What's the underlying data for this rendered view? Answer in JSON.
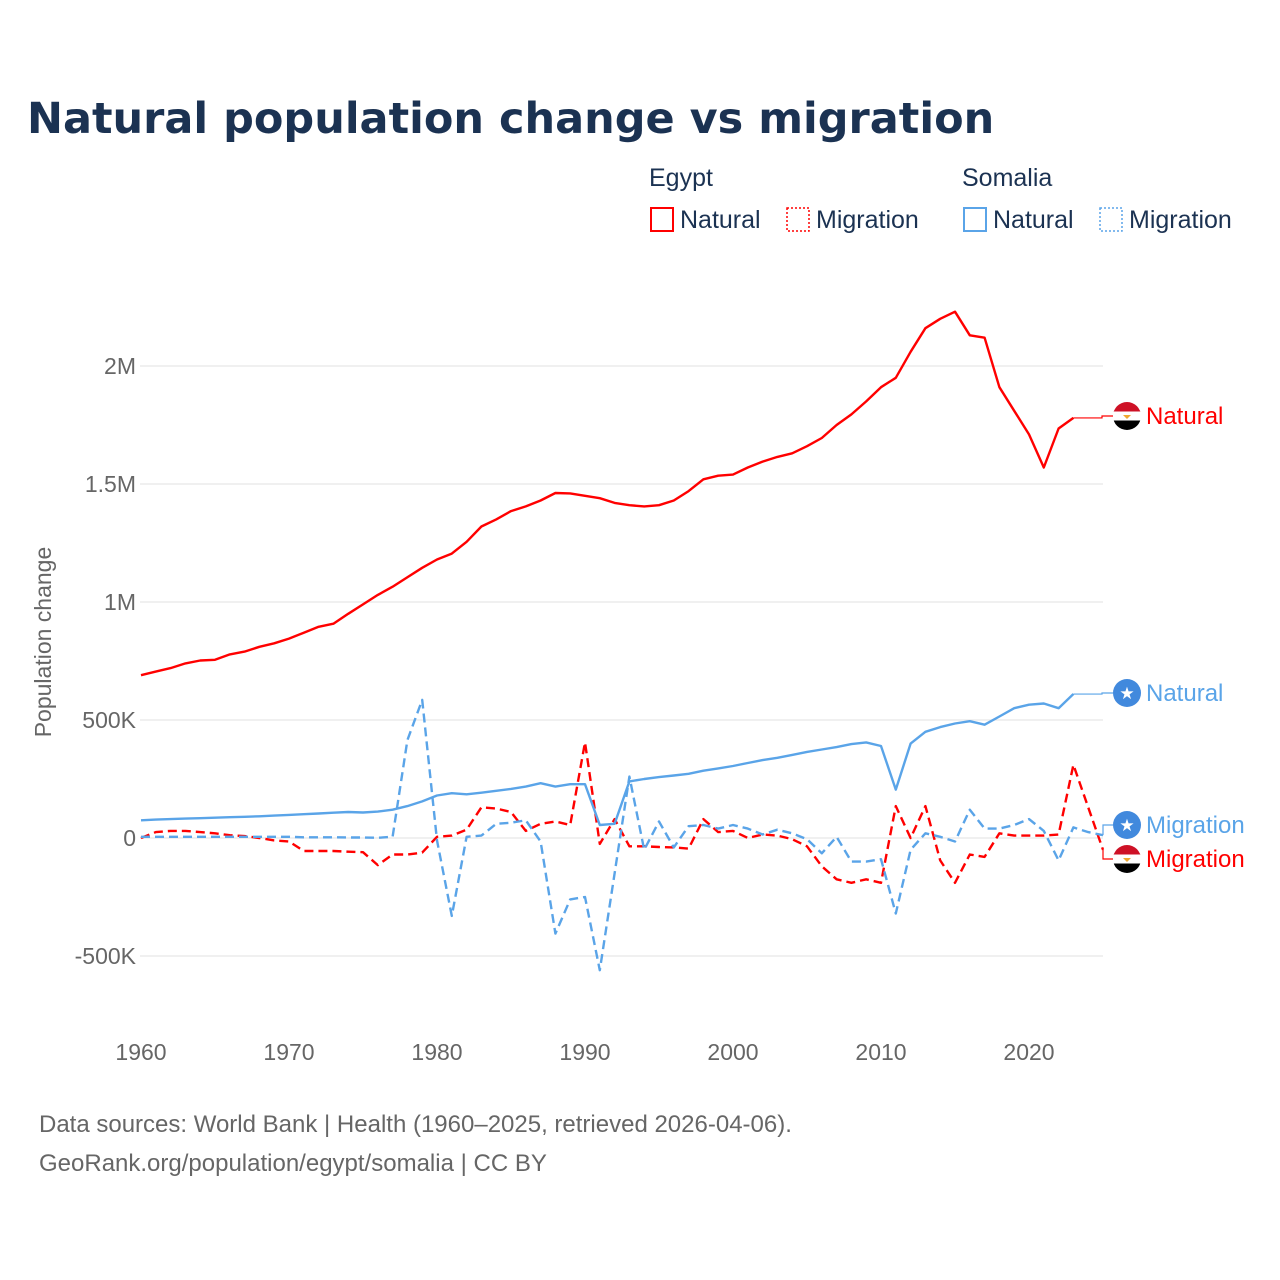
{
  "chart_data": {
    "type": "line",
    "title": "Natural population change vs migration",
    "ylabel": "Population change",
    "xlabel": "",
    "ylim": [
      -600000,
      2300000
    ],
    "xlim": [
      1960,
      2025
    ],
    "grid": true,
    "y_ticks": [
      {
        "value": -500000,
        "label": "-500K"
      },
      {
        "value": 0,
        "label": "0"
      },
      {
        "value": 500000,
        "label": "500K"
      },
      {
        "value": 1000000,
        "label": "1M"
      },
      {
        "value": 1500000,
        "label": "1.5M"
      },
      {
        "value": 2000000,
        "label": "2M"
      }
    ],
    "x_ticks": [
      {
        "value": 1960,
        "label": "1960"
      },
      {
        "value": 1970,
        "label": "1970"
      },
      {
        "value": 1980,
        "label": "1980"
      },
      {
        "value": 1990,
        "label": "1990"
      },
      {
        "value": 2000,
        "label": "2000"
      },
      {
        "value": 2010,
        "label": "2010"
      },
      {
        "value": 2020,
        "label": "2020"
      }
    ],
    "legend": {
      "placement": "top-right",
      "groups": [
        {
          "country": "Egypt",
          "items": [
            "Natural",
            "Migration"
          ]
        },
        {
          "country": "Somalia",
          "items": [
            "Natural",
            "Migration"
          ]
        }
      ]
    },
    "series": [
      {
        "name": "Egypt Natural",
        "country": "Egypt",
        "kind": "Natural",
        "color": "#ff0000",
        "dashed": false,
        "start_year": 1960,
        "end_label": "Natural",
        "values": [
          690000,
          705000,
          720000,
          740000,
          752000,
          755000,
          778000,
          790000,
          810000,
          825000,
          845000,
          870000,
          895000,
          908000,
          950000,
          990000,
          1030000,
          1065000,
          1105000,
          1145000,
          1180000,
          1205000,
          1255000,
          1320000,
          1350000,
          1385000,
          1405000,
          1430000,
          1462000,
          1460000,
          1450000,
          1440000,
          1420000,
          1410000,
          1405000,
          1410000,
          1430000,
          1470000,
          1520000,
          1535000,
          1540000,
          1570000,
          1595000,
          1615000,
          1630000,
          1660000,
          1695000,
          1750000,
          1795000,
          1850000,
          1910000,
          1950000,
          2060000,
          2160000,
          2200000,
          2230000,
          2130000,
          2120000,
          1910000,
          1810000,
          1710000,
          1570000,
          1735000,
          1780000
        ]
      },
      {
        "name": "Egypt Migration",
        "country": "Egypt",
        "kind": "Migration",
        "color": "#ff0000",
        "dashed": true,
        "start_year": 1960,
        "end_label": "Migration",
        "values": [
          0,
          25000,
          30000,
          30000,
          25000,
          20000,
          12000,
          8000,
          0,
          -10000,
          -15000,
          -55000,
          -55000,
          -55000,
          -58000,
          -60000,
          -115000,
          -70000,
          -70000,
          -62000,
          5000,
          10000,
          35000,
          130000,
          125000,
          110000,
          30000,
          60000,
          70000,
          55000,
          405000,
          -25000,
          80000,
          -35000,
          -35000,
          -38000,
          -40000,
          -45000,
          80000,
          25000,
          30000,
          0,
          15000,
          10000,
          -5000,
          -35000,
          -120000,
          -175000,
          -190000,
          -175000,
          -190000,
          135000,
          0,
          135000,
          -95000,
          -190000,
          -70000,
          -80000,
          20000,
          10000,
          10000,
          10000,
          15000,
          310000,
          130000,
          -50000
        ]
      },
      {
        "name": "Somalia Natural",
        "country": "Somalia",
        "kind": "Natural",
        "color": "#5aa4e8",
        "dashed": false,
        "start_year": 1960,
        "end_label": "Natural",
        "values": [
          75000,
          78000,
          80000,
          82000,
          84000,
          86000,
          88000,
          90000,
          92000,
          95000,
          98000,
          101000,
          104000,
          107000,
          110000,
          108000,
          112000,
          120000,
          135000,
          155000,
          180000,
          190000,
          185000,
          192000,
          200000,
          208000,
          218000,
          232000,
          218000,
          228000,
          228000,
          55000,
          60000,
          240000,
          250000,
          258000,
          265000,
          272000,
          285000,
          295000,
          305000,
          318000,
          330000,
          340000,
          352000,
          365000,
          375000,
          385000,
          398000,
          405000,
          390000,
          205000,
          400000,
          450000,
          470000,
          485000,
          495000,
          480000,
          515000,
          550000,
          565000,
          570000,
          550000,
          610000
        ]
      },
      {
        "name": "Somalia Migration",
        "country": "Somalia",
        "kind": "Migration",
        "color": "#5aa4e8",
        "dashed": true,
        "start_year": 1960,
        "end_label": "Migration",
        "values": [
          5000,
          5000,
          5000,
          5000,
          5000,
          5000,
          5000,
          5000,
          5000,
          5000,
          5000,
          3000,
          3000,
          3000,
          2000,
          2000,
          1000,
          5000,
          415000,
          585000,
          -10000,
          -330000,
          5000,
          10000,
          60000,
          65000,
          75000,
          -15000,
          -405000,
          -260000,
          -250000,
          -560000,
          -150000,
          260000,
          -50000,
          70000,
          -40000,
          50000,
          55000,
          40000,
          55000,
          40000,
          15000,
          35000,
          20000,
          -5000,
          -65000,
          5000,
          -100000,
          -100000,
          -90000,
          -320000,
          -50000,
          20000,
          5000,
          -15000,
          120000,
          40000,
          40000,
          55000,
          80000,
          30000,
          -95000,
          45000,
          25000,
          12000
        ]
      }
    ]
  },
  "footer": {
    "line1": "Data sources: World Bank | Health (1960–2025, retrieved 2026-04-06).",
    "line2": "GeoRank.org/population/egypt/somalia | CC BY"
  },
  "flags": {
    "Egypt": "egypt-flag-icon",
    "Somalia": "somalia-flag-icon"
  }
}
